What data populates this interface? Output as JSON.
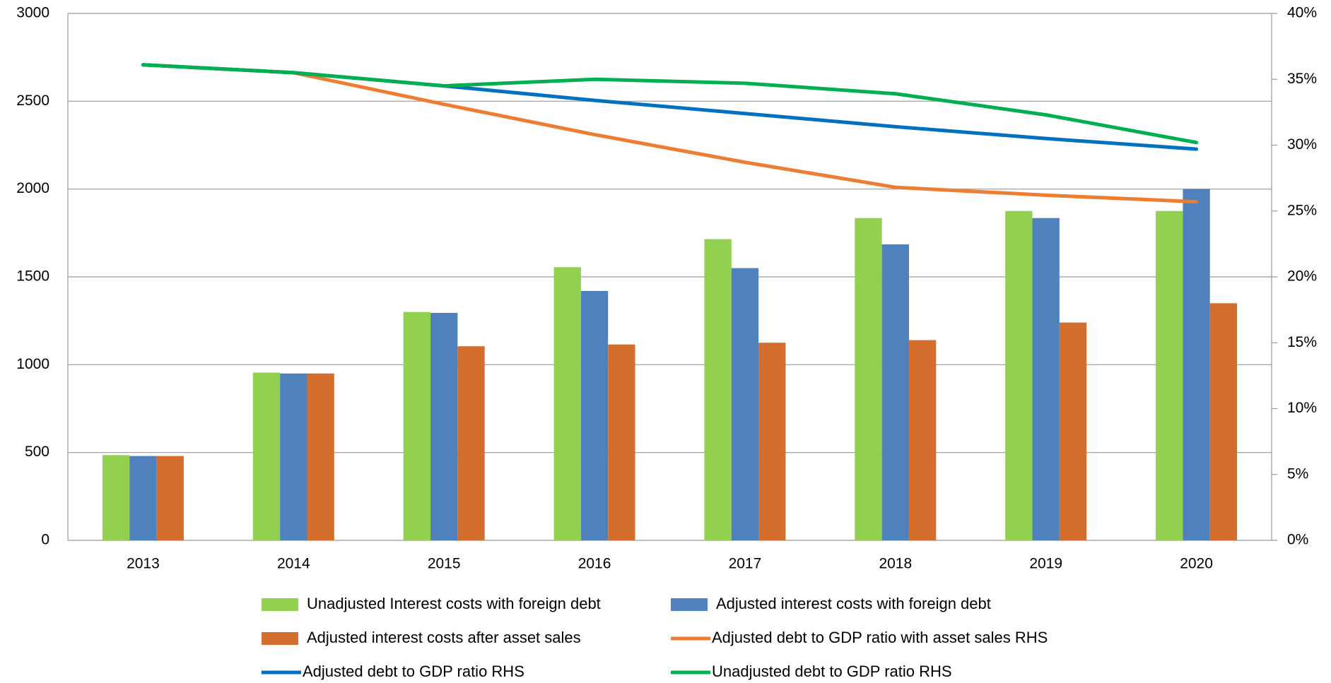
{
  "chart_data": {
    "type": "bar",
    "categories": [
      "2013",
      "2014",
      "2015",
      "2016",
      "2017",
      "2018",
      "2019",
      "2020"
    ],
    "series": [
      {
        "name": "Unadjusted Interest costs with foreign debt",
        "color": "#92d050",
        "type": "bar",
        "axis": "y",
        "values": [
          485,
          955,
          1300,
          1555,
          1715,
          1835,
          1875,
          1875
        ]
      },
      {
        "name": "Adjusted interest costs with foreign debt",
        "color": "#4f81bd",
        "type": "bar",
        "axis": "y",
        "values": [
          480,
          950,
          1295,
          1420,
          1550,
          1685,
          1835,
          2000
        ]
      },
      {
        "name": "Adjusted interest costs after asset sales",
        "color": "#d46e2c",
        "type": "bar",
        "axis": "y",
        "values": [
          480,
          950,
          1105,
          1115,
          1125,
          1140,
          1240,
          1350
        ]
      },
      {
        "name": "Adjusted debt to GDP ratio with asset sales RHS",
        "color": "#ed7d31",
        "type": "line",
        "axis": "y2",
        "values": [
          36.1,
          35.5,
          33.1,
          30.8,
          28.7,
          26.8,
          26.2,
          25.7
        ]
      },
      {
        "name": "Adjusted debt to GDP ratio RHS",
        "color": "#0070c0",
        "type": "line",
        "axis": "y2",
        "values": [
          36.1,
          35.5,
          34.5,
          33.4,
          32.4,
          31.4,
          30.5,
          29.7
        ]
      },
      {
        "name": "Unadjusted debt to GDP ratio RHS",
        "color": "#00b050",
        "type": "line",
        "axis": "y2",
        "values": [
          36.1,
          35.5,
          34.5,
          35.0,
          34.7,
          33.9,
          32.3,
          30.2
        ]
      }
    ],
    "ylim": [
      0,
      3000
    ],
    "yticks": [
      0,
      500,
      1000,
      1500,
      2000,
      2500,
      3000
    ],
    "y2lim": [
      0,
      40
    ],
    "y2ticks": [
      {
        "value": 0,
        "label": "0%"
      },
      {
        "value": 5,
        "label": "5%"
      },
      {
        "value": 10,
        "label": "10%"
      },
      {
        "value": 15,
        "label": "15%"
      },
      {
        "value": 20,
        "label": "20%"
      },
      {
        "value": 25,
        "label": "25%"
      },
      {
        "value": 30,
        "label": "30%"
      },
      {
        "value": 35,
        "label": "35%"
      },
      {
        "value": 40,
        "label": "40%"
      }
    ],
    "grid": true,
    "legend": "bottom"
  }
}
